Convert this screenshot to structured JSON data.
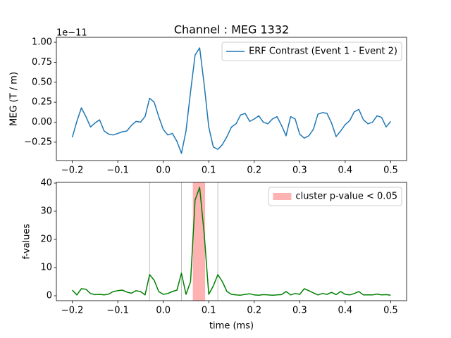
{
  "chart_data": [
    {
      "type": "line",
      "title": "Channel : MEG 1332",
      "ylabel": "MEG (T / m)",
      "offset_text": "1e−11",
      "x": [
        -0.2,
        -0.19,
        -0.18,
        -0.17,
        -0.16,
        -0.15,
        -0.14,
        -0.13,
        -0.12,
        -0.11,
        -0.1,
        -0.09,
        -0.08,
        -0.07,
        -0.06,
        -0.05,
        -0.04,
        -0.03,
        -0.02,
        -0.01,
        0.0,
        0.01,
        0.02,
        0.03,
        0.04,
        0.05,
        0.06,
        0.07,
        0.08,
        0.09,
        0.1,
        0.11,
        0.12,
        0.13,
        0.14,
        0.15,
        0.16,
        0.17,
        0.18,
        0.19,
        0.2,
        0.21,
        0.22,
        0.23,
        0.24,
        0.25,
        0.26,
        0.27,
        0.28,
        0.29,
        0.3,
        0.31,
        0.32,
        0.33,
        0.34,
        0.35,
        0.36,
        0.37,
        0.38,
        0.39,
        0.4,
        0.41,
        0.42,
        0.43,
        0.44,
        0.45,
        0.46,
        0.47,
        0.48,
        0.49,
        0.5
      ],
      "series": [
        {
          "name": "ERF Contrast (Event 1 - Event 2)",
          "color": "#1f77b4",
          "values": [
            -0.19,
            0.01,
            0.18,
            0.07,
            -0.06,
            -0.01,
            0.03,
            -0.11,
            -0.15,
            -0.16,
            -0.14,
            -0.12,
            -0.11,
            -0.04,
            0.01,
            0.0,
            0.07,
            0.3,
            0.25,
            0.07,
            -0.09,
            -0.16,
            -0.14,
            -0.24,
            -0.39,
            -0.11,
            0.38,
            0.84,
            0.93,
            0.47,
            -0.06,
            -0.31,
            -0.34,
            -0.28,
            -0.18,
            -0.06,
            -0.02,
            0.09,
            0.11,
            0.01,
            0.04,
            0.08,
            0.0,
            -0.02,
            0.04,
            0.07,
            -0.04,
            -0.17,
            0.07,
            0.04,
            -0.15,
            -0.2,
            -0.17,
            -0.09,
            0.1,
            0.12,
            0.11,
            -0.01,
            -0.18,
            -0.11,
            -0.03,
            0.02,
            0.13,
            0.16,
            0.03,
            -0.02,
            0.0,
            0.08,
            0.06,
            -0.06,
            0.01
          ]
        }
      ],
      "legend": "upper right",
      "xlim": [
        -0.235,
        0.535
      ],
      "xticks": [
        {
          "value": -0.2,
          "label": "−0.2"
        },
        {
          "value": -0.1,
          "label": "−0.1"
        },
        {
          "value": 0.0,
          "label": "0.0"
        },
        {
          "value": 0.1,
          "label": "0.1"
        },
        {
          "value": 0.2,
          "label": "0.2"
        },
        {
          "value": 0.3,
          "label": "0.3"
        },
        {
          "value": 0.4,
          "label": "0.4"
        },
        {
          "value": 0.5,
          "label": "0.5"
        }
      ],
      "ylim": [
        -0.48,
        1.062
      ],
      "yticks": [
        {
          "value": -0.25,
          "label": "−0.25"
        },
        {
          "value": 0.0,
          "label": "0.00"
        },
        {
          "value": 0.25,
          "label": "0.25"
        },
        {
          "value": 0.5,
          "label": "0.50"
        },
        {
          "value": 0.75,
          "label": "0.75"
        },
        {
          "value": 1.0,
          "label": "1.00"
        }
      ]
    },
    {
      "type": "line",
      "xlabel": "time (ms)",
      "ylabel": "f-values",
      "x": [
        -0.2,
        -0.19,
        -0.18,
        -0.17,
        -0.16,
        -0.15,
        -0.14,
        -0.13,
        -0.12,
        -0.11,
        -0.1,
        -0.09,
        -0.08,
        -0.07,
        -0.06,
        -0.05,
        -0.04,
        -0.03,
        -0.02,
        -0.01,
        0.0,
        0.01,
        0.02,
        0.03,
        0.04,
        0.05,
        0.06,
        0.07,
        0.08,
        0.09,
        0.1,
        0.11,
        0.12,
        0.13,
        0.14,
        0.15,
        0.16,
        0.17,
        0.18,
        0.19,
        0.2,
        0.21,
        0.22,
        0.23,
        0.24,
        0.25,
        0.26,
        0.27,
        0.28,
        0.29,
        0.3,
        0.31,
        0.32,
        0.33,
        0.34,
        0.35,
        0.36,
        0.37,
        0.38,
        0.39,
        0.4,
        0.41,
        0.42,
        0.43,
        0.44,
        0.45,
        0.46,
        0.47,
        0.48,
        0.49,
        0.5
      ],
      "series": [
        {
          "color": "#008000",
          "values": [
            2.0,
            0.3,
            2.5,
            2.3,
            0.8,
            0.4,
            0.5,
            0.3,
            0.6,
            1.5,
            1.8,
            2.0,
            1.3,
            0.9,
            1.8,
            1.5,
            0.3,
            7.5,
            5.5,
            1.5,
            0.5,
            0.8,
            1.5,
            2.0,
            8.0,
            0.5,
            5.0,
            34,
            38.5,
            22,
            0.5,
            3.5,
            7.5,
            5.0,
            1.5,
            0.5,
            0.3,
            0.2,
            0.5,
            0.7,
            0.3,
            0.2,
            0.4,
            0.3,
            0.2,
            0.3,
            0.4,
            1.5,
            0.3,
            0.8,
            0.5,
            2.5,
            1.8,
            1.0,
            0.3,
            0.8,
            0.5,
            1.2,
            0.4,
            1.5,
            0.5,
            0.3,
            0.8,
            1.5,
            0.3,
            0.3,
            0.3,
            0.6,
            0.3,
            0.4,
            0.2
          ]
        }
      ],
      "spans": [
        {
          "name": "cluster p-value < 0.05",
          "start": 0.065,
          "end": 0.092,
          "color": "#ff0000",
          "alpha": 0.3
        }
      ],
      "vlines": {
        "values": [
          -0.03,
          0.04,
          0.12
        ],
        "color": "#c0c0c0"
      },
      "legend": "upper right",
      "xlim": [
        -0.235,
        0.535
      ],
      "xticks": [
        {
          "value": -0.2,
          "label": "−0.2"
        },
        {
          "value": -0.1,
          "label": "−0.1"
        },
        {
          "value": 0.0,
          "label": "0.0"
        },
        {
          "value": 0.1,
          "label": "0.1"
        },
        {
          "value": 0.2,
          "label": "0.2"
        },
        {
          "value": 0.3,
          "label": "0.3"
        },
        {
          "value": 0.4,
          "label": "0.4"
        },
        {
          "value": 0.5,
          "label": "0.5"
        }
      ],
      "ylim": [
        -1.75,
        40.25
      ],
      "yticks": [
        0,
        10,
        20,
        30,
        40
      ]
    }
  ]
}
